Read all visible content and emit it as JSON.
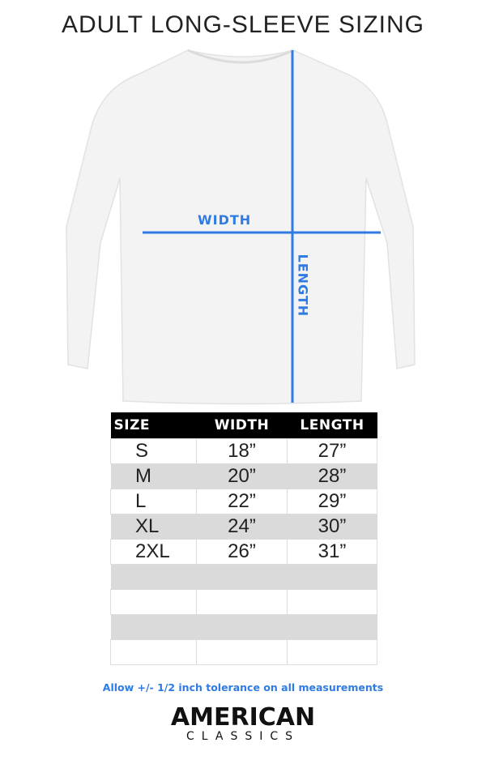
{
  "title": "ADULT LONG-SLEEVE SIZING",
  "diagram": {
    "width_label": "WIDTH",
    "length_label": "LENGTH",
    "accent_color": "#2f7be3"
  },
  "table": {
    "headers": [
      "SIZE",
      "WIDTH",
      "LENGTH"
    ],
    "rows": [
      [
        "S",
        "18”",
        "27”"
      ],
      [
        "M",
        "20”",
        "28”"
      ],
      [
        "L",
        "22”",
        "29”"
      ],
      [
        "XL",
        "24”",
        "30”"
      ],
      [
        "2XL",
        "26”",
        "31”"
      ],
      [
        "",
        "",
        ""
      ],
      [
        "",
        "",
        ""
      ],
      [
        "",
        "",
        ""
      ],
      [
        "",
        "",
        ""
      ]
    ]
  },
  "note": "Allow +/- 1/2 inch tolerance on all measurements",
  "brand": {
    "line1": "AMERICAN",
    "line2": "CLASSICS"
  }
}
